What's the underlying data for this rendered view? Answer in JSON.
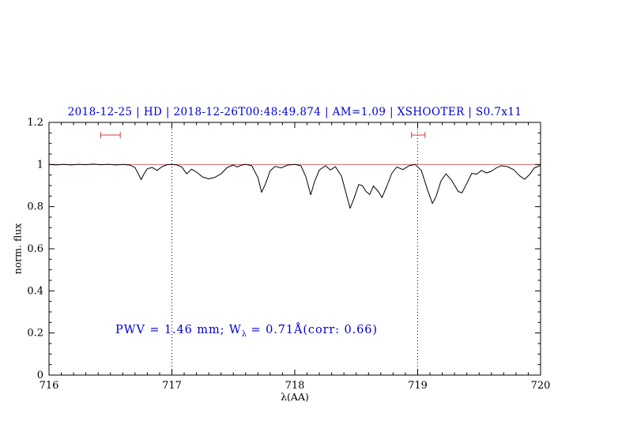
{
  "title": "2018-12-25 | HD | 2018-12-26T00:48:49.874 | AM=1.09 | XSHOOTER | S0.7x11",
  "annotation": {
    "part1": "PWV = 1.46 mm; W",
    "sub": "λ",
    "part2": " = 0.71Å(corr: 0.66)"
  },
  "colors": {
    "accent_blue": "#0000cd",
    "marker_red": "#cd4040",
    "continuum_red": "#cd5555",
    "spectrum_black": "#000000"
  },
  "axes": {
    "x": {
      "label": "λ(AA)",
      "min": 716,
      "max": 720,
      "ticks": [
        716,
        717,
        718,
        719,
        720
      ],
      "minor_step": 0.1
    },
    "y": {
      "label": "norm. flux",
      "min": 0,
      "max": 1.2,
      "ticks": [
        0,
        0.2,
        0.4,
        0.6,
        0.8,
        1,
        1.2
      ],
      "tick_labels": [
        "0",
        "0.2",
        "0.4",
        "0.6",
        "0.8",
        "1",
        "1.2"
      ],
      "minor_step": 0.05
    }
  },
  "chart_data": {
    "type": "line",
    "title": "2018-12-25 | HD | 2018-12-26T00:48:49.874 | AM=1.09 | XSHOOTER | S0.7x11",
    "xlabel": "λ(AA)",
    "ylabel": "norm. flux",
    "xlim": [
      716,
      720
    ],
    "ylim": [
      0,
      1.2
    ],
    "grid": false,
    "legend": "none",
    "series": [
      {
        "name": "continuum",
        "color": "#cd5555",
        "width": 0.8,
        "points": [
          [
            716.0,
            1.0
          ],
          [
            720.0,
            1.0
          ]
        ]
      },
      {
        "name": "observed-spectrum",
        "color": "#000000",
        "width": 1,
        "points": [
          [
            716.0,
            1.0
          ],
          [
            716.06,
            0.998
          ],
          [
            716.12,
            1.001
          ],
          [
            716.18,
            0.998
          ],
          [
            716.24,
            1.001
          ],
          [
            716.3,
            0.999
          ],
          [
            716.36,
            1.002
          ],
          [
            716.42,
            0.999
          ],
          [
            716.48,
            1.001
          ],
          [
            716.54,
            0.998
          ],
          [
            716.6,
            1.0
          ],
          [
            716.66,
            0.997
          ],
          [
            716.7,
            0.985
          ],
          [
            716.73,
            0.952
          ],
          [
            716.75,
            0.928
          ],
          [
            716.77,
            0.952
          ],
          [
            716.8,
            0.98
          ],
          [
            716.84,
            0.986
          ],
          [
            716.88,
            0.972
          ],
          [
            716.92,
            0.99
          ],
          [
            716.96,
            0.999
          ],
          [
            717.0,
            1.0
          ],
          [
            717.04,
            0.998
          ],
          [
            717.08,
            0.989
          ],
          [
            717.12,
            0.956
          ],
          [
            717.16,
            0.978
          ],
          [
            717.2,
            0.964
          ],
          [
            717.25,
            0.941
          ],
          [
            717.3,
            0.932
          ],
          [
            717.35,
            0.939
          ],
          [
            717.4,
            0.956
          ],
          [
            717.45,
            0.986
          ],
          [
            717.5,
            0.998
          ],
          [
            717.53,
            0.988
          ],
          [
            717.56,
            0.996
          ],
          [
            717.6,
            1.001
          ],
          [
            717.65,
            0.994
          ],
          [
            717.7,
            0.938
          ],
          [
            717.73,
            0.868
          ],
          [
            717.76,
            0.906
          ],
          [
            717.8,
            0.97
          ],
          [
            717.84,
            0.991
          ],
          [
            717.89,
            0.984
          ],
          [
            717.94,
            0.997
          ],
          [
            718.0,
            1.001
          ],
          [
            718.05,
            0.994
          ],
          [
            718.09,
            0.942
          ],
          [
            718.13,
            0.856
          ],
          [
            718.16,
            0.918
          ],
          [
            718.2,
            0.974
          ],
          [
            718.25,
            0.994
          ],
          [
            718.29,
            0.974
          ],
          [
            718.33,
            0.99
          ],
          [
            718.38,
            0.945
          ],
          [
            718.42,
            0.858
          ],
          [
            718.45,
            0.792
          ],
          [
            718.48,
            0.835
          ],
          [
            718.52,
            0.905
          ],
          [
            718.55,
            0.9
          ],
          [
            718.58,
            0.872
          ],
          [
            718.61,
            0.858
          ],
          [
            718.64,
            0.898
          ],
          [
            718.68,
            0.872
          ],
          [
            718.71,
            0.843
          ],
          [
            718.75,
            0.898
          ],
          [
            718.79,
            0.958
          ],
          [
            718.83,
            0.988
          ],
          [
            718.88,
            0.976
          ],
          [
            718.93,
            0.994
          ],
          [
            718.98,
            1.0
          ],
          [
            719.03,
            0.972
          ],
          [
            719.08,
            0.88
          ],
          [
            719.12,
            0.815
          ],
          [
            719.15,
            0.848
          ],
          [
            719.19,
            0.922
          ],
          [
            719.23,
            0.956
          ],
          [
            719.28,
            0.922
          ],
          [
            719.33,
            0.872
          ],
          [
            719.36,
            0.866
          ],
          [
            719.4,
            0.91
          ],
          [
            719.44,
            0.958
          ],
          [
            719.48,
            0.954
          ],
          [
            719.52,
            0.972
          ],
          [
            719.56,
            0.96
          ],
          [
            719.6,
            0.968
          ],
          [
            719.64,
            0.984
          ],
          [
            719.68,
            0.994
          ],
          [
            719.73,
            0.99
          ],
          [
            719.78,
            0.976
          ],
          [
            719.83,
            0.946
          ],
          [
            719.87,
            0.93
          ],
          [
            719.91,
            0.952
          ],
          [
            719.95,
            0.984
          ],
          [
            720.0,
            0.996
          ]
        ]
      }
    ],
    "vlines": [
      {
        "x": 717,
        "style": "dotted",
        "color": "#000000"
      },
      {
        "x": 719,
        "style": "dotted",
        "color": "#000000"
      }
    ],
    "range_markers": [
      {
        "x1": 716.42,
        "x2": 716.58,
        "y": 1.14,
        "color": "#cd4040"
      },
      {
        "x1": 718.95,
        "x2": 719.06,
        "y": 1.14,
        "color": "#cd4040"
      }
    ],
    "annotations": [
      {
        "text": "PWV = 1.46 mm; Wλ = 0.71Å(corr: 0.66)",
        "x": 716.55,
        "y": 0.21,
        "color": "#0000cd"
      }
    ]
  }
}
